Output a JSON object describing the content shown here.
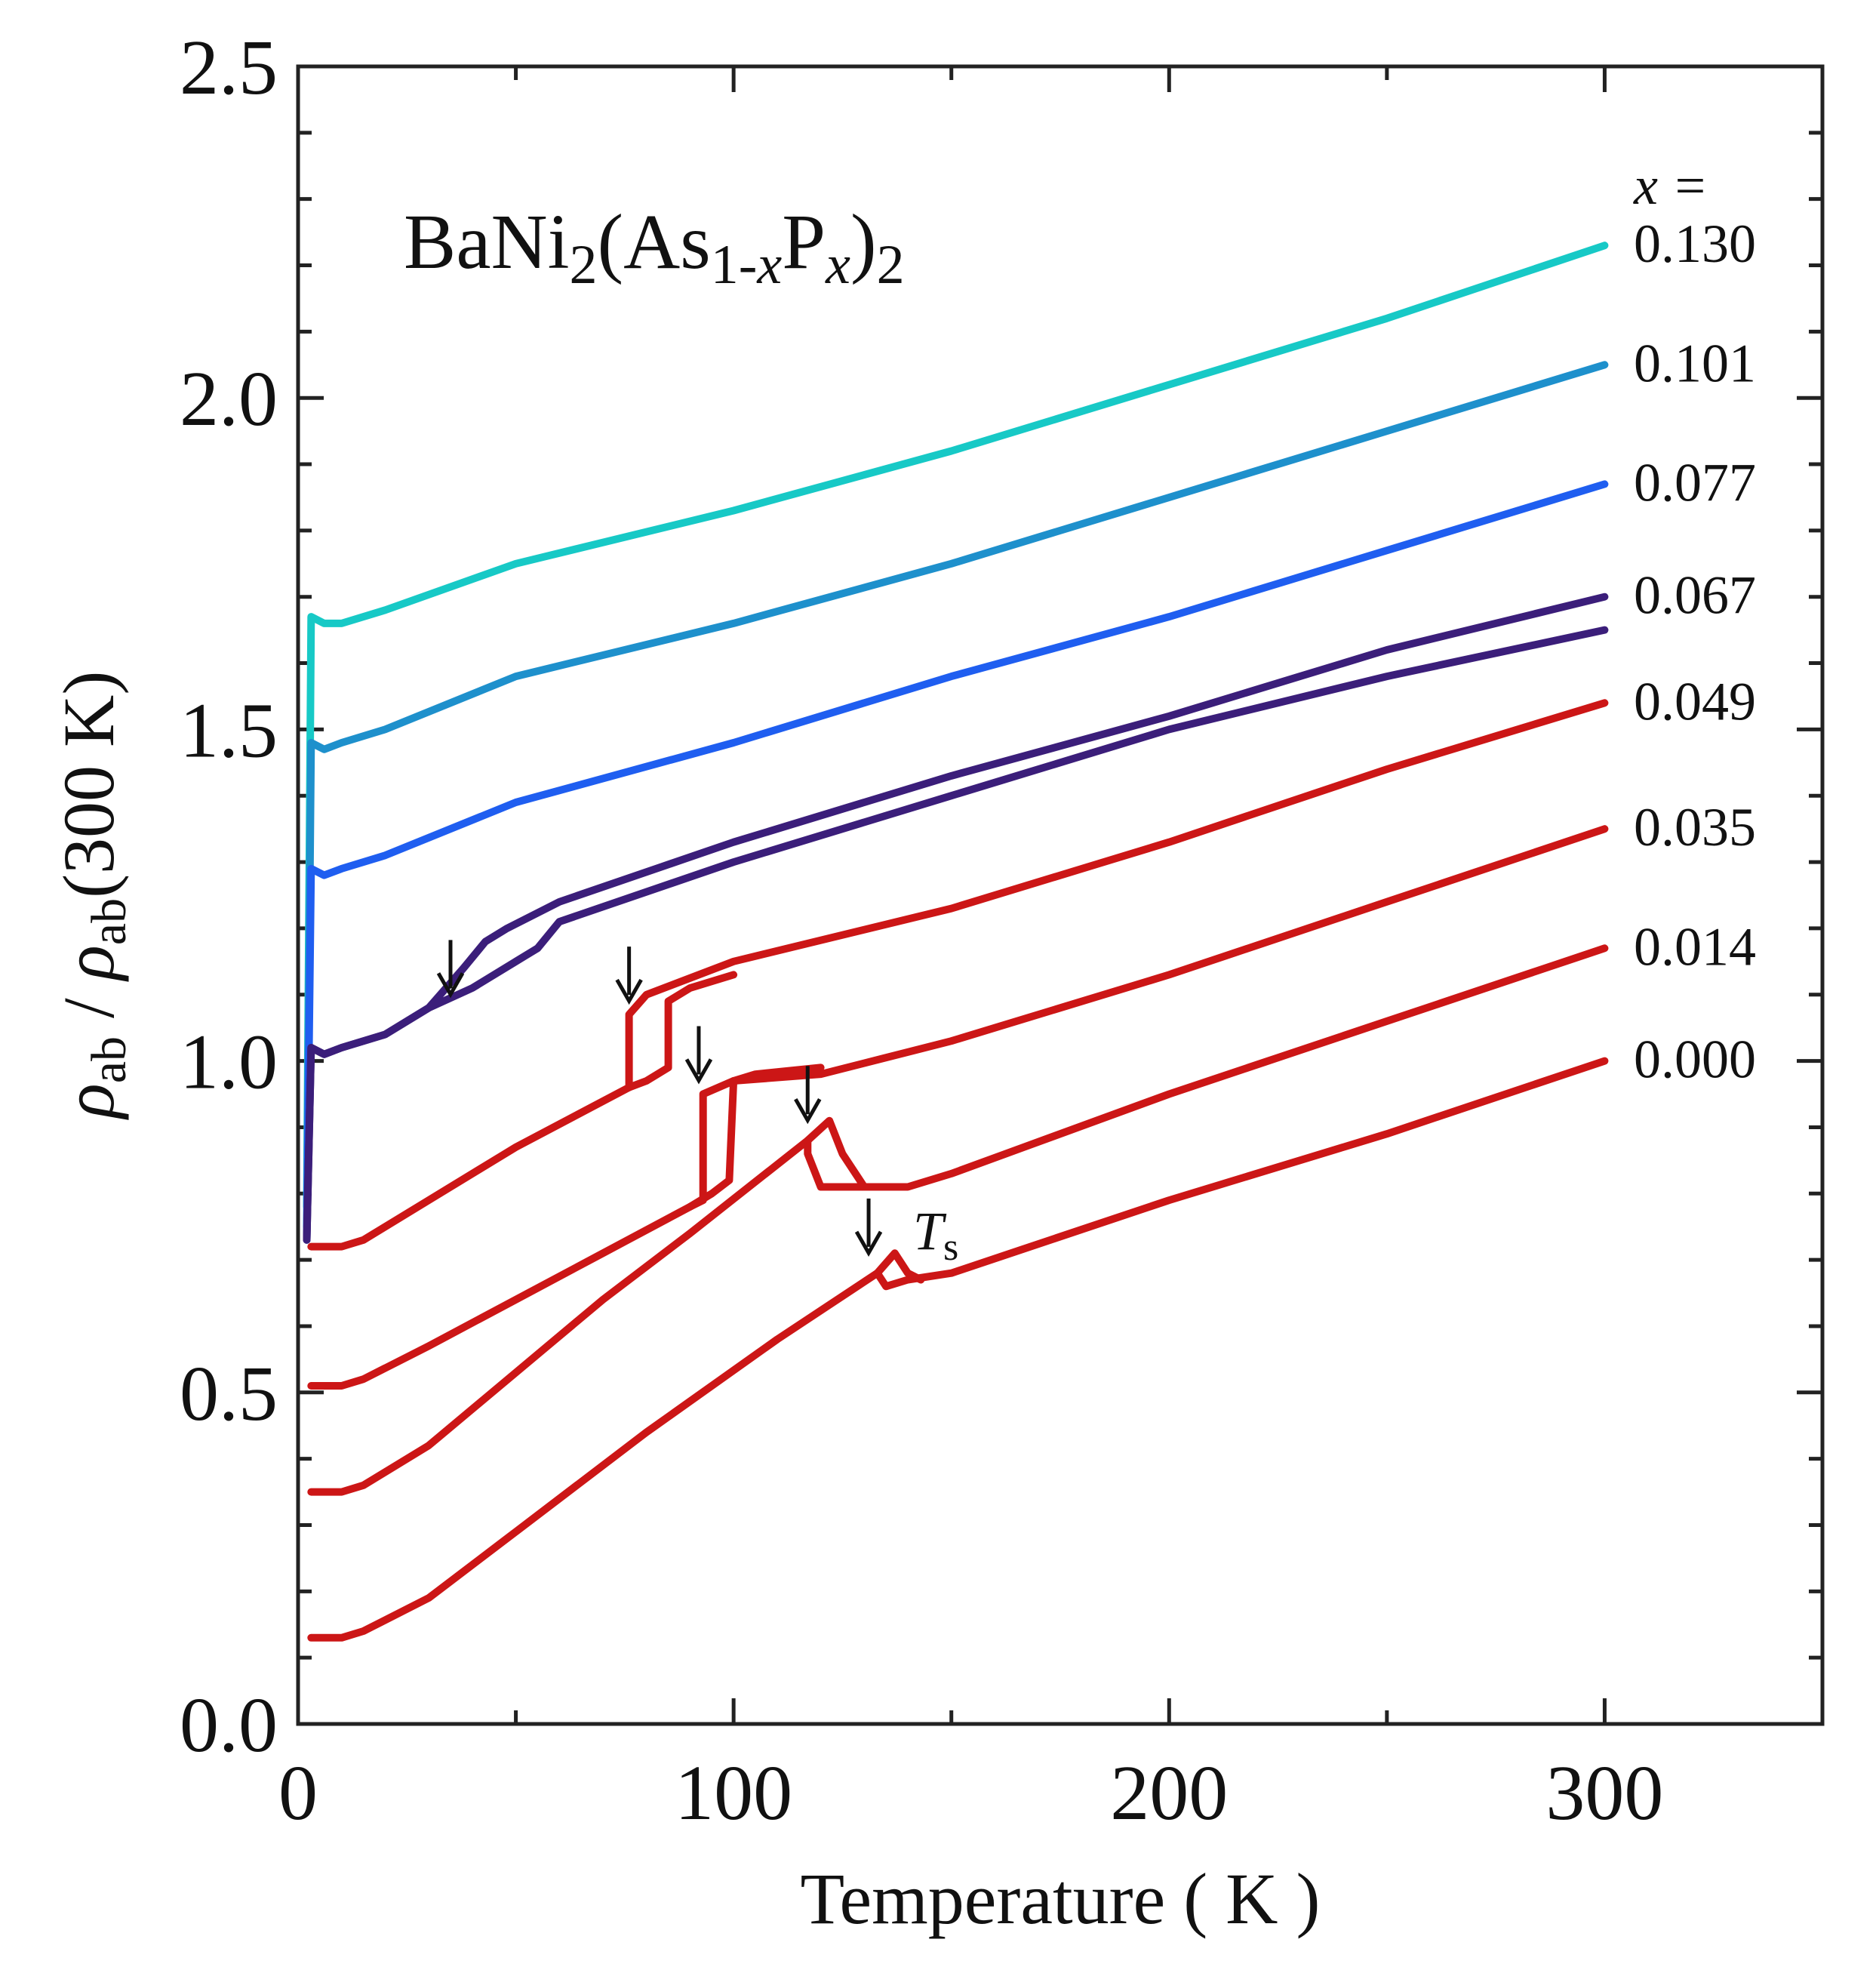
{
  "chart_data": {
    "type": "line",
    "title": "BaNi2(As1-xPx)2",
    "title_parts": {
      "base": "BaNi",
      "sub1": "2",
      "open": "(As",
      "sub2": "1-",
      "sub3": "x",
      "p": "P",
      "sub4": "x",
      "close": ")",
      "sub5": "2"
    },
    "xlabel": "Temperature ( K )",
    "ylabel": {
      "rho": "ρ",
      "sub_ab": "ab",
      "sep": " / ",
      "suffix": "(300 K)"
    },
    "xlim": [
      0,
      350
    ],
    "ylim": [
      0,
      2.5
    ],
    "x_ticks": [
      0,
      100,
      200,
      300
    ],
    "x_tick_labels": [
      "0",
      "100",
      "200",
      "300"
    ],
    "y_ticks": [
      0,
      0.5,
      1.0,
      1.5,
      2.0,
      2.5
    ],
    "y_tick_labels": [
      "0.0",
      "0.5",
      "1.0",
      "1.5",
      "2.0",
      "2.5"
    ],
    "legend_header": "x =",
    "annotation_ts": {
      "t": "T",
      "sub": "s"
    },
    "series": [
      {
        "name": "0.130",
        "color": "#17c9c6",
        "x": [
          2,
          3,
          6,
          10,
          20,
          50,
          100,
          150,
          200,
          250,
          300
        ],
        "y": [
          0.78,
          1.67,
          1.66,
          1.66,
          1.68,
          1.75,
          1.83,
          1.92,
          2.02,
          2.12,
          2.23
        ]
      },
      {
        "name": "0.101",
        "color": "#1e90cc",
        "x": [
          2,
          3,
          6,
          10,
          20,
          50,
          100,
          150,
          200,
          250,
          300
        ],
        "y": [
          0.75,
          1.48,
          1.47,
          1.48,
          1.5,
          1.58,
          1.66,
          1.75,
          1.85,
          1.95,
          2.05
        ]
      },
      {
        "name": "0.077",
        "color": "#1f5ef0",
        "x": [
          2,
          3,
          6,
          10,
          20,
          50,
          100,
          150,
          200,
          250,
          300
        ],
        "y": [
          0.73,
          1.29,
          1.28,
          1.29,
          1.31,
          1.39,
          1.48,
          1.58,
          1.67,
          1.77,
          1.87
        ]
      },
      {
        "name": "0.067",
        "color": "#3b1e7a",
        "x": [
          2,
          3,
          6,
          10,
          20,
          30,
          38,
          43,
          48,
          60,
          100,
          150,
          200,
          250,
          300
        ],
        "y": [
          0.73,
          1.02,
          1.01,
          1.02,
          1.04,
          1.08,
          1.14,
          1.18,
          1.2,
          1.24,
          1.33,
          1.43,
          1.52,
          1.62,
          1.7
        ]
      },
      {
        "name": "",
        "color": "#3b1e7a",
        "x": [
          2,
          3,
          6,
          10,
          20,
          30,
          40,
          50,
          55,
          60,
          100,
          150,
          200,
          250,
          300
        ],
        "y": [
          0.73,
          1.02,
          1.01,
          1.02,
          1.04,
          1.08,
          1.11,
          1.15,
          1.17,
          1.21,
          1.3,
          1.4,
          1.5,
          1.58,
          1.65
        ]
      },
      {
        "name": "0.049",
        "color": "#cc1616",
        "x": [
          3,
          10,
          15,
          30,
          50,
          76,
          76,
          80,
          100,
          150,
          200,
          250,
          300
        ],
        "y": [
          0.72,
          0.72,
          0.73,
          0.79,
          0.87,
          0.96,
          1.07,
          1.1,
          1.15,
          1.23,
          1.33,
          1.44,
          1.54
        ]
      },
      {
        "name": "",
        "color": "#cc1616",
        "x": [
          76,
          80,
          85,
          85,
          90,
          100
        ],
        "y": [
          0.96,
          0.97,
          0.99,
          1.09,
          1.11,
          1.13
        ]
      },
      {
        "name": "0.035",
        "color": "#cc1616",
        "x": [
          3,
          10,
          15,
          30,
          50,
          70,
          90,
          93,
          93,
          100,
          120,
          150,
          200,
          250,
          300
        ],
        "y": [
          0.51,
          0.51,
          0.52,
          0.57,
          0.64,
          0.71,
          0.78,
          0.79,
          0.95,
          0.97,
          0.98,
          1.03,
          1.13,
          1.24,
          1.35
        ]
      },
      {
        "name": "",
        "color": "#cc1616",
        "x": [
          90,
          95,
          99,
          100,
          105,
          120
        ],
        "y": [
          0.78,
          0.8,
          0.82,
          0.97,
          0.98,
          0.99
        ]
      },
      {
        "name": "0.014",
        "color": "#cc1616",
        "x": [
          3,
          10,
          15,
          30,
          50,
          70,
          90,
          117,
          117,
          120,
          140,
          150,
          200,
          250,
          300
        ],
        "y": [
          0.35,
          0.35,
          0.36,
          0.42,
          0.53,
          0.64,
          0.74,
          0.88,
          0.86,
          0.81,
          0.81,
          0.83,
          0.95,
          1.06,
          1.17
        ]
      },
      {
        "name": "",
        "color": "#cc1616",
        "x": [
          117,
          122,
          125,
          130
        ],
        "y": [
          0.88,
          0.91,
          0.86,
          0.81
        ]
      },
      {
        "name": "0.000",
        "color": "#cc1616",
        "x": [
          3,
          10,
          15,
          30,
          50,
          80,
          110,
          133,
          135,
          140,
          150,
          200,
          250,
          300
        ],
        "y": [
          0.13,
          0.13,
          0.14,
          0.19,
          0.29,
          0.44,
          0.58,
          0.68,
          0.66,
          0.67,
          0.68,
          0.79,
          0.89,
          1.0
        ]
      },
      {
        "name": "",
        "color": "#cc1616",
        "x": [
          133,
          137,
          140,
          143
        ],
        "y": [
          0.68,
          0.71,
          0.68,
          0.67
        ]
      }
    ],
    "arrows": [
      {
        "x": 35,
        "y": 1.08
      },
      {
        "x": 76,
        "y": 1.07
      },
      {
        "x": 92,
        "y": 0.95
      },
      {
        "x": 117,
        "y": 0.89
      },
      {
        "x": 131,
        "y": 0.69
      }
    ]
  }
}
